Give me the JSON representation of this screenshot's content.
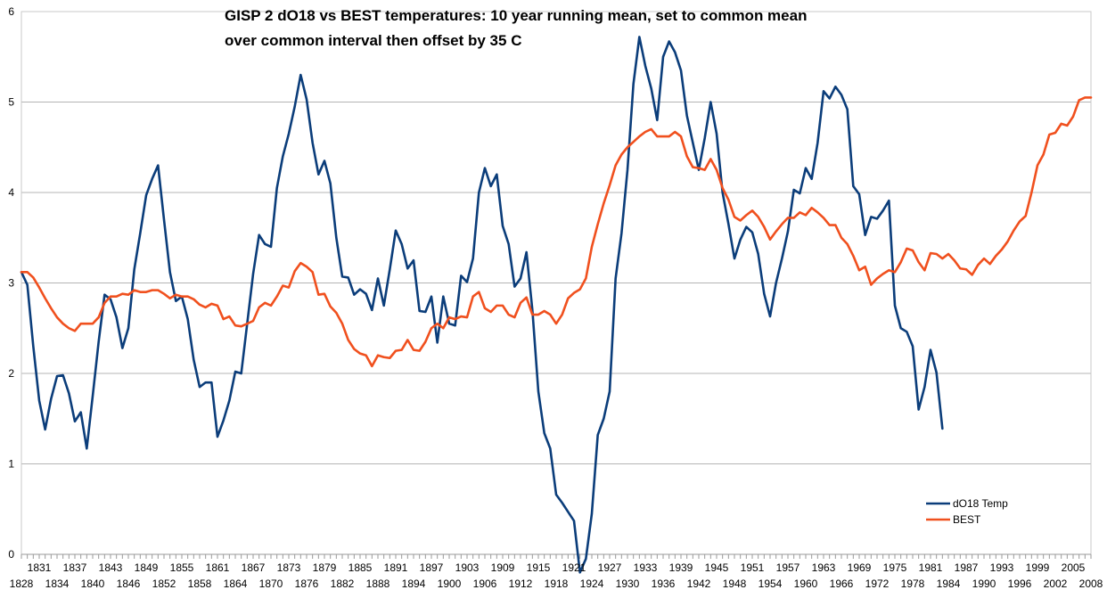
{
  "chart_data": {
    "type": "line",
    "title_lines": [
      "GISP 2 dO18 vs BEST temperatures: 10 year running mean, set to common mean",
      "over common interval then offset by 35 C"
    ],
    "xlabel": "",
    "ylabel": "",
    "x_range": [
      1828,
      2008
    ],
    "ylim": [
      0,
      6
    ],
    "y_ticks": [
      0,
      1,
      2,
      3,
      4,
      5,
      6
    ],
    "x_tick_labels": [
      "1828",
      "1831",
      "1834",
      "1837",
      "1840",
      "1843",
      "1846",
      "1849",
      "1852",
      "1855",
      "1858",
      "1861",
      "1864",
      "1867",
      "1870",
      "1873",
      "1876",
      "1879",
      "1882",
      "1885",
      "1888",
      "1891",
      "1894",
      "1897",
      "1900",
      "1903",
      "1906",
      "1909",
      "1912",
      "1915",
      "1918",
      "1921",
      "1924",
      "1927",
      "1930",
      "1933",
      "1936",
      "1939",
      "1942",
      "1945",
      "1948",
      "1951",
      "1954",
      "1957",
      "1960",
      "1963",
      "1966",
      "1969",
      "1972",
      "1975",
      "1978",
      "1981",
      "1984",
      "1987",
      "1990",
      "1993",
      "1996",
      "1999",
      "2002",
      "2005",
      "2008"
    ],
    "grid": true,
    "legend_position": "bottom-right",
    "series": [
      {
        "name": "dO18 Temp",
        "color": "#0b3d7a",
        "x": [
          1828,
          1829,
          1830,
          1831,
          1832,
          1833,
          1834,
          1835,
          1836,
          1837,
          1838,
          1839,
          1840,
          1841,
          1842,
          1843,
          1844,
          1845,
          1846,
          1847,
          1848,
          1849,
          1850,
          1851,
          1852,
          1853,
          1854,
          1855,
          1856,
          1857,
          1858,
          1859,
          1860,
          1861,
          1862,
          1863,
          1864,
          1865,
          1866,
          1867,
          1868,
          1869,
          1870,
          1871,
          1872,
          1873,
          1874,
          1875,
          1876,
          1877,
          1878,
          1879,
          1880,
          1881,
          1882,
          1883,
          1884,
          1885,
          1886,
          1887,
          1888,
          1889,
          1890,
          1891,
          1892,
          1893,
          1894,
          1895,
          1896,
          1897,
          1898,
          1899,
          1900,
          1901,
          1902,
          1903,
          1904,
          1905,
          1906,
          1907,
          1908,
          1909,
          1910,
          1911,
          1912,
          1913,
          1914,
          1915,
          1916,
          1917,
          1918,
          1919,
          1920,
          1921,
          1922,
          1923,
          1924,
          1925,
          1926,
          1927,
          1928,
          1929,
          1930,
          1931,
          1932,
          1933,
          1934,
          1935,
          1936,
          1937,
          1938,
          1939,
          1940,
          1941,
          1942,
          1943,
          1944,
          1945,
          1946,
          1947,
          1948,
          1949,
          1950,
          1951,
          1952,
          1953,
          1954,
          1955,
          1956,
          1957,
          1958,
          1959,
          1960,
          1961,
          1962,
          1963,
          1964,
          1965,
          1966,
          1967,
          1968,
          1969,
          1970,
          1971,
          1972,
          1973,
          1974,
          1975,
          1976,
          1977,
          1978,
          1979,
          1980,
          1981,
          1982,
          1983
        ],
        "values": [
          3.12,
          2.98,
          2.3,
          1.7,
          1.38,
          1.72,
          1.97,
          1.98,
          1.78,
          1.47,
          1.57,
          1.17,
          1.75,
          2.35,
          2.87,
          2.82,
          2.62,
          2.28,
          2.5,
          3.15,
          3.55,
          3.97,
          4.15,
          4.3,
          3.7,
          3.12,
          2.8,
          2.85,
          2.6,
          2.15,
          1.85,
          1.9,
          1.9,
          1.3,
          1.48,
          1.7,
          2.02,
          2.0,
          2.55,
          3.1,
          3.53,
          3.43,
          3.4,
          4.05,
          4.4,
          4.65,
          4.95,
          5.3,
          5.03,
          4.55,
          4.2,
          4.35,
          4.1,
          3.5,
          3.07,
          3.06,
          2.87,
          2.93,
          2.88,
          2.7,
          3.05,
          2.75,
          3.15,
          3.58,
          3.43,
          3.16,
          3.25,
          2.69,
          2.68,
          2.85,
          2.34,
          2.85,
          2.55,
          2.53,
          3.08,
          3.01,
          3.27,
          4.0,
          4.27,
          4.07,
          4.2,
          3.63,
          3.43,
          2.96,
          3.05,
          3.34,
          2.7,
          1.8,
          1.34,
          1.17,
          0.66,
          0.57,
          0.47,
          0.37,
          -0.2,
          -0.05,
          0.45,
          1.32,
          1.5,
          1.8,
          3.05,
          3.55,
          4.25,
          5.2,
          5.72,
          5.4,
          5.15,
          4.8,
          5.5,
          5.67,
          5.55,
          5.35,
          4.85,
          4.55,
          4.25,
          4.6,
          5.0,
          4.65,
          4.0,
          3.65,
          3.27,
          3.48,
          3.62,
          3.56,
          3.32,
          2.88,
          2.63,
          3.0,
          3.27,
          3.57,
          4.03,
          3.99,
          4.27,
          4.15,
          4.55,
          5.12,
          5.04,
          5.17,
          5.08,
          4.92,
          4.07,
          3.98,
          3.53,
          3.73,
          3.71,
          3.8,
          3.91,
          2.75,
          2.5,
          2.46,
          2.3,
          1.6,
          1.85,
          2.26,
          2.01,
          1.39
        ]
      },
      {
        "name": "BEST",
        "color": "#f0501e",
        "x": [
          1828,
          1829,
          1830,
          1831,
          1832,
          1833,
          1834,
          1835,
          1836,
          1837,
          1838,
          1839,
          1840,
          1841,
          1842,
          1843,
          1844,
          1845,
          1846,
          1847,
          1848,
          1849,
          1850,
          1851,
          1852,
          1853,
          1854,
          1855,
          1856,
          1857,
          1858,
          1859,
          1860,
          1861,
          1862,
          1863,
          1864,
          1865,
          1866,
          1867,
          1868,
          1869,
          1870,
          1871,
          1872,
          1873,
          1874,
          1875,
          1876,
          1877,
          1878,
          1879,
          1880,
          1881,
          1882,
          1883,
          1884,
          1885,
          1886,
          1887,
          1888,
          1889,
          1890,
          1891,
          1892,
          1893,
          1894,
          1895,
          1896,
          1897,
          1898,
          1899,
          1900,
          1901,
          1902,
          1903,
          1904,
          1905,
          1906,
          1907,
          1908,
          1909,
          1910,
          1911,
          1912,
          1913,
          1914,
          1915,
          1916,
          1917,
          1918,
          1919,
          1920,
          1921,
          1922,
          1923,
          1924,
          1925,
          1926,
          1927,
          1928,
          1929,
          1930,
          1931,
          1932,
          1933,
          1934,
          1935,
          1936,
          1937,
          1938,
          1939,
          1940,
          1941,
          1942,
          1943,
          1944,
          1945,
          1946,
          1947,
          1948,
          1949,
          1950,
          1951,
          1952,
          1953,
          1954,
          1955,
          1956,
          1957,
          1958,
          1959,
          1960,
          1961,
          1962,
          1963,
          1964,
          1965,
          1966,
          1967,
          1968,
          1969,
          1970,
          1971,
          1972,
          1973,
          1974,
          1975,
          1976,
          1977,
          1978,
          1979,
          1980,
          1981,
          1982,
          1983,
          1984,
          1985,
          1986,
          1987,
          1988,
          1989,
          1990,
          1991,
          1992,
          1993,
          1994,
          1995,
          1996,
          1997,
          1998,
          1999,
          2000,
          2001,
          2002,
          2003,
          2004,
          2005,
          2006,
          2007,
          2008
        ],
        "values": [
          3.12,
          3.12,
          3.06,
          2.95,
          2.83,
          2.72,
          2.62,
          2.55,
          2.5,
          2.47,
          2.55,
          2.55,
          2.55,
          2.62,
          2.78,
          2.85,
          2.85,
          2.88,
          2.87,
          2.92,
          2.9,
          2.9,
          2.92,
          2.92,
          2.88,
          2.83,
          2.87,
          2.85,
          2.85,
          2.82,
          2.76,
          2.73,
          2.77,
          2.75,
          2.6,
          2.63,
          2.53,
          2.52,
          2.55,
          2.58,
          2.73,
          2.78,
          2.75,
          2.85,
          2.97,
          2.95,
          3.13,
          3.22,
          3.18,
          3.12,
          2.87,
          2.88,
          2.74,
          2.67,
          2.55,
          2.37,
          2.27,
          2.22,
          2.2,
          2.08,
          2.2,
          2.18,
          2.17,
          2.25,
          2.26,
          2.37,
          2.26,
          2.25,
          2.35,
          2.5,
          2.55,
          2.5,
          2.62,
          2.6,
          2.63,
          2.62,
          2.85,
          2.9,
          2.72,
          2.68,
          2.75,
          2.75,
          2.65,
          2.62,
          2.78,
          2.84,
          2.65,
          2.65,
          2.69,
          2.65,
          2.55,
          2.65,
          2.83,
          2.89,
          2.93,
          3.05,
          3.4,
          3.65,
          3.88,
          4.08,
          4.3,
          4.42,
          4.5,
          4.56,
          4.62,
          4.67,
          4.7,
          4.62,
          4.62,
          4.62,
          4.67,
          4.62,
          4.4,
          4.28,
          4.27,
          4.25,
          4.37,
          4.25,
          4.05,
          3.92,
          3.73,
          3.69,
          3.75,
          3.8,
          3.73,
          3.62,
          3.48,
          3.57,
          3.65,
          3.72,
          3.72,
          3.78,
          3.75,
          3.83,
          3.78,
          3.72,
          3.64,
          3.64,
          3.5,
          3.43,
          3.3,
          3.14,
          3.18,
          2.98,
          3.05,
          3.1,
          3.14,
          3.12,
          3.23,
          3.38,
          3.36,
          3.23,
          3.14,
          3.33,
          3.32,
          3.27,
          3.32,
          3.25,
          3.16,
          3.15,
          3.09,
          3.2,
          3.27,
          3.21,
          3.3,
          3.37,
          3.46,
          3.58,
          3.68,
          3.74,
          4.0,
          4.3,
          4.42,
          4.64,
          4.66,
          4.76,
          4.74,
          4.84,
          5.02,
          5.05,
          5.05
        ]
      }
    ]
  }
}
